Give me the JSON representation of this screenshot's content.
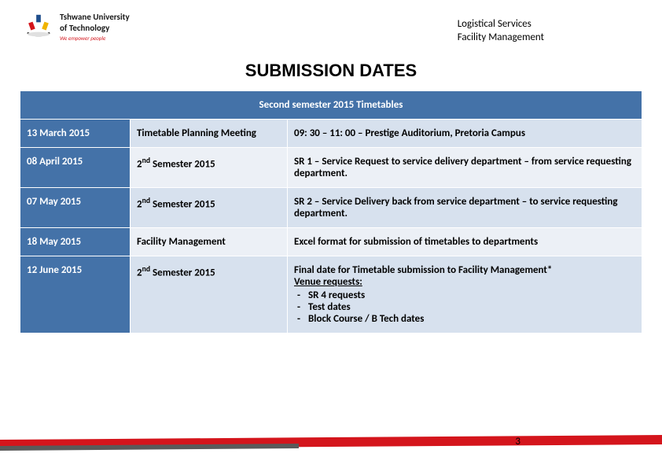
{
  "header": {
    "logo_line1": "Tshwane University",
    "logo_line2": "of Technology",
    "logo_tagline": "We empower people",
    "dept_line1": "Logistical Services",
    "dept_line2": "Facility Management"
  },
  "title": "SUBMISSION DATES",
  "table": {
    "header": "Second semester 2015 Timetables",
    "rows": [
      {
        "date": "13 March 2015",
        "col2": "Timetable Planning Meeting",
        "col3_html": "09: 30 – 11: 00 – Prestige Auditorium, Pretoria Campus"
      },
      {
        "date": "08 April 2015",
        "col2_html": "2<sup>nd</sup> Semester 2015",
        "col3_html": "SR 1 – Service Request to service delivery department – from service requesting department."
      },
      {
        "date": "07 May 2015",
        "col2_html": "2<sup>nd</sup> Semester 2015",
        "col3_html": "SR 2 – Service Delivery back from service department – to service requesting department."
      },
      {
        "date": "18 May 2015",
        "col2": "Facility Management",
        "col3_html": "Excel format for submission of timetables to departments"
      },
      {
        "date": "12 June 2015",
        "col2_html": "2<sup>nd</sup> Semester 2015",
        "col3_html": "Final date for Timetable submission to Facility Management*<br><span class=\"underline\">Venue requests:</span><ul class=\"bullet-list\"><li>SR 4 requests</li><li>Test dates</li><li>Block Course / B Tech dates</li></ul>"
      }
    ]
  },
  "page_number": "3",
  "colors": {
    "table_header_bg": "#4472a8",
    "row_odd_bg": "#d7e1ee",
    "row_even_bg": "#ecf0f6",
    "footer_red": "#d4151c",
    "footer_dark": "#5a5a5a"
  }
}
